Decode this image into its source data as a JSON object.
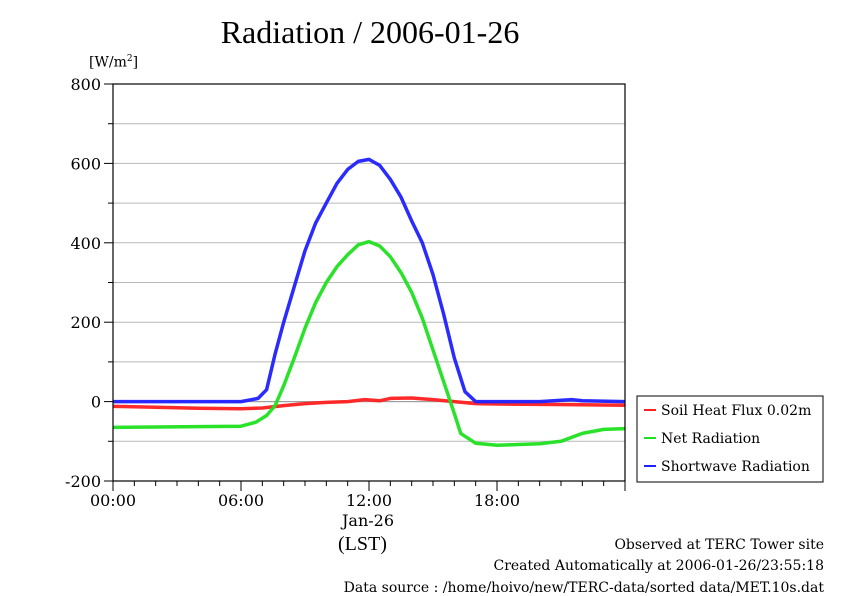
{
  "chart_data": {
    "type": "line",
    "title": "Radiation / 2006-01-26",
    "ylabel": "[W/m2]",
    "xlabel": "(LST)",
    "date_label": "Jan-26",
    "ylim": [
      -200,
      800
    ],
    "xlim": [
      0,
      24
    ],
    "yticks": [
      -200,
      0,
      200,
      400,
      600,
      800
    ],
    "ytick_labels": [
      "-200",
      "0",
      "200",
      "400",
      "600",
      "800"
    ],
    "xticks": [
      0,
      6,
      12,
      18
    ],
    "xtick_labels": [
      "00:00",
      "06:00",
      "12:00",
      "18:00"
    ],
    "grid": true,
    "legend_position": "right",
    "series": [
      {
        "name": "Soil Heat Flux 0.02m",
        "color": "#ff2020",
        "x": [
          0,
          2,
          4,
          6,
          7,
          8,
          9,
          10,
          11,
          11.8,
          12.5,
          13,
          14,
          15,
          16,
          17,
          18,
          20,
          22,
          24
        ],
        "y": [
          -12,
          -14,
          -17,
          -18,
          -16,
          -10,
          -5,
          -2,
          0,
          5,
          2,
          8,
          9,
          5,
          0,
          -5,
          -6,
          -7,
          -8,
          -9
        ]
      },
      {
        "name": "Net Radiation",
        "color": "#20e020",
        "x": [
          0,
          2,
          4,
          6,
          6.7,
          7.2,
          7.6,
          8,
          8.5,
          9,
          9.5,
          10,
          10.5,
          11,
          11.5,
          12,
          12.5,
          13,
          13.5,
          14,
          14.5,
          15,
          15.5,
          16,
          16.3,
          17,
          18,
          19,
          20,
          21,
          22,
          23,
          24
        ],
        "y": [
          -65,
          -64,
          -63,
          -62,
          -52,
          -35,
          -10,
          40,
          110,
          185,
          250,
          300,
          340,
          370,
          395,
          403,
          392,
          365,
          325,
          275,
          210,
          130,
          50,
          -30,
          -80,
          -105,
          -110,
          -108,
          -106,
          -100,
          -80,
          -70,
          -68
        ]
      },
      {
        "name": "Shortwave Radiation",
        "color": "#2020ff",
        "x": [
          0,
          2,
          4,
          6,
          6.8,
          7.2,
          7.6,
          8,
          8.5,
          9,
          9.5,
          10,
          10.5,
          11,
          11.5,
          12,
          12.5,
          13,
          13.5,
          14,
          14.5,
          15,
          15.5,
          16,
          16.5,
          17,
          18,
          20,
          21.5,
          22,
          24
        ],
        "y": [
          0,
          0,
          0,
          0,
          8,
          30,
          120,
          200,
          290,
          380,
          450,
          500,
          550,
          585,
          605,
          610,
          595,
          560,
          515,
          455,
          400,
          320,
          220,
          110,
          25,
          0,
          0,
          0,
          5,
          2,
          0
        ]
      }
    ]
  },
  "footer": {
    "line1": "Observed at TERC Tower site",
    "line2": "Created Automatically at 2006-01-26/23:55:18",
    "line3": "Data source : /home/hoivo/new/TERC-data/sorted  data/MET.10s.dat"
  }
}
